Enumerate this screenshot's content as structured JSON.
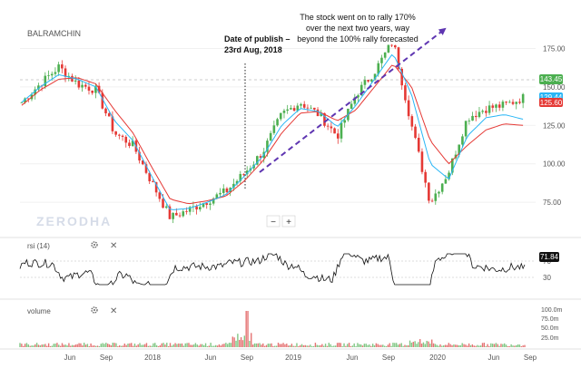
{
  "chart_data": {
    "type": "candlestick",
    "symbol": "BALRAMCHIN",
    "watermark": "ZERODHA",
    "price_axis": {
      "ticks": [
        75,
        100,
        125,
        150,
        175
      ],
      "tick_labels": [
        "75.00",
        "100.00",
        "125.00",
        "150.00",
        "175.00"
      ],
      "range": [
        58,
        190
      ]
    },
    "x_axis": {
      "labels": [
        "Jun",
        "Sep",
        "2018",
        "Jun",
        "Sep",
        "2019",
        "Jun",
        "Sep",
        "2020",
        "Jun",
        "Sep"
      ]
    },
    "last_price_labels": [
      {
        "text": "143.45",
        "color": "#4caf50"
      },
      {
        "text": "129.44",
        "color": "#29b6f6"
      },
      {
        "text": "125.60",
        "color": "#e53935"
      }
    ],
    "price_series": {
      "x": [
        "Apr 2017",
        "Jun 2017",
        "Sep 2017",
        "Oct 2017",
        "Dec 2017",
        "Jan 2018",
        "Feb 2018",
        "Apr 2018",
        "Jun 2018",
        "Aug 2018",
        "Sep 2018",
        "Oct 2018",
        "Jan 2019",
        "Feb 2019",
        "Apr 2019",
        "Jun 2019",
        "Aug 2019",
        "Sep 2019",
        "Oct 2019",
        "Dec 2019",
        "Jan 2020",
        "Mar 2020",
        "Apr 2020",
        "May 2020",
        "Jun 2020",
        "Jul 2020",
        "Aug 2020",
        "Sep 2020"
      ],
      "close": [
        140,
        152,
        163,
        152,
        148,
        120,
        112,
        88,
        65,
        70,
        76,
        82,
        94,
        108,
        132,
        140,
        132,
        118,
        145,
        160,
        180,
        125,
        75,
        95,
        130,
        136,
        138,
        143
      ],
      "ema_fast": [
        140,
        150,
        158,
        155,
        150,
        128,
        115,
        92,
        70,
        71,
        75,
        80,
        92,
        105,
        125,
        136,
        134,
        124,
        138,
        155,
        172,
        145,
        100,
        90,
        118,
        130,
        132,
        129
      ],
      "ema_slow": [
        138,
        148,
        155,
        156,
        152,
        135,
        120,
        98,
        77,
        74,
        76,
        79,
        89,
        102,
        120,
        133,
        134,
        128,
        135,
        150,
        165,
        150,
        115,
        100,
        112,
        122,
        126,
        125
      ]
    },
    "series_colors": {
      "ema_fast": "#29b6f6",
      "ema_slow": "#e53935"
    },
    "rsi": {
      "label": "rsi (14)",
      "last_value": "71.84",
      "ticks": [
        "70",
        "30"
      ]
    },
    "volume": {
      "label": "volume",
      "ticks": [
        "100.0m",
        "75.0m",
        "50.0m",
        "25.0m"
      ]
    },
    "annotations": [
      {
        "id": "publish",
        "lines": [
          "Date of publish –",
          "23rd Aug, 2018"
        ]
      },
      {
        "id": "rally",
        "lines": [
          "The stock went on to rally 170%",
          "over the next two years, way",
          "beyond the 100% rally forecasted"
        ]
      }
    ],
    "zoom_controls": [
      "−",
      "+"
    ]
  }
}
